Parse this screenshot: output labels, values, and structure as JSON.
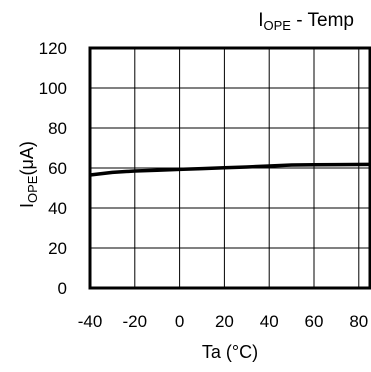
{
  "chart_data": {
    "type": "line",
    "title": {
      "main": "I",
      "sub": "OPE",
      "suffix": " - Temp"
    },
    "xlabel": "Ta (°C)",
    "ylabel": {
      "main": "I",
      "sub": "OPE",
      "suffix": "(μA)"
    },
    "xlim": [
      -40,
      85
    ],
    "ylim": [
      0,
      120
    ],
    "xticks": [
      -40,
      -20,
      0,
      20,
      40,
      60,
      80
    ],
    "yticks": [
      0,
      20,
      40,
      60,
      80,
      100,
      120
    ],
    "grid": true,
    "series": [
      {
        "x": [
          -40,
          -30,
          -20,
          -10,
          0,
          10,
          20,
          30,
          40,
          50,
          60,
          70,
          85
        ],
        "y": [
          56.5,
          57.8,
          58.5,
          58.9,
          59.3,
          59.7,
          60.1,
          60.5,
          61.0,
          61.5,
          61.6,
          61.7,
          61.8
        ]
      }
    ]
  }
}
